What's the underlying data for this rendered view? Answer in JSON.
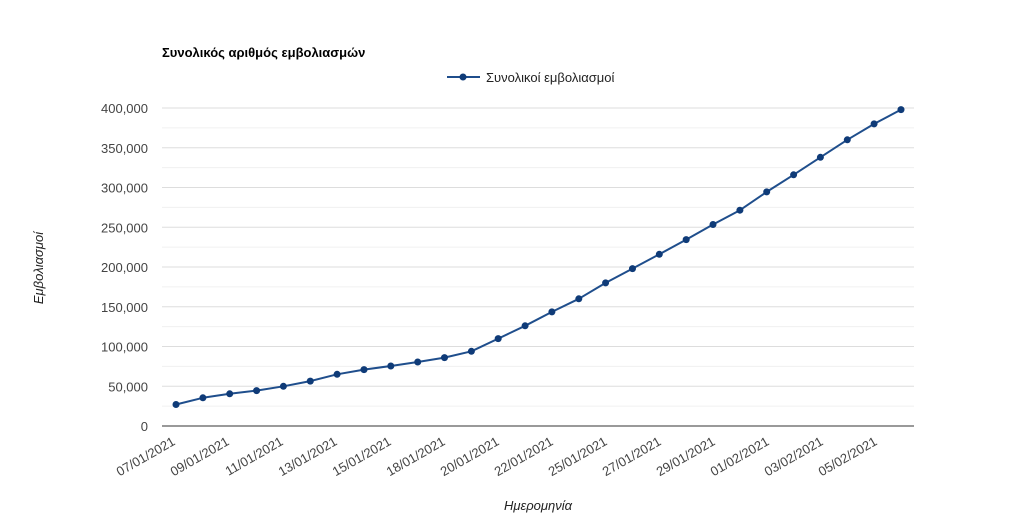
{
  "chart_data": {
    "type": "line",
    "title": "Συνολικός αριθμός εμβολιασμών",
    "xlabel": "Ημερομηνία",
    "ylabel": "Εμβολιασμοί",
    "ylim": [
      0,
      400000
    ],
    "yticks": [
      "0",
      "50,000",
      "100,000",
      "150,000",
      "200,000",
      "250,000",
      "300,000",
      "350,000",
      "400,000"
    ],
    "xtick_labels": [
      "07/01/2021",
      "09/01/2021",
      "11/01/2021",
      "13/01/2021",
      "15/01/2021",
      "18/01/2021",
      "20/01/2021",
      "22/01/2021",
      "25/01/2021",
      "27/01/2021",
      "29/01/2021",
      "01/02/2021",
      "03/02/2021",
      "05/02/2021"
    ],
    "legend_position": "top",
    "grid": true,
    "colors": {
      "series": "#1f4e8c",
      "marker": "#0f3b78",
      "grid": "#dddddd",
      "axis": "#333333"
    },
    "series": [
      {
        "name": "Συνολικοί εμβολιασμοί",
        "values": [
          27000,
          35500,
          40500,
          44500,
          50000,
          56500,
          65000,
          71000,
          75500,
          80500,
          86000,
          94000,
          110000,
          126000,
          143500,
          160000,
          180000,
          198000,
          216000,
          234500,
          253500,
          271500,
          294500,
          316000,
          338000,
          360000,
          380000,
          398000
        ]
      }
    ]
  }
}
